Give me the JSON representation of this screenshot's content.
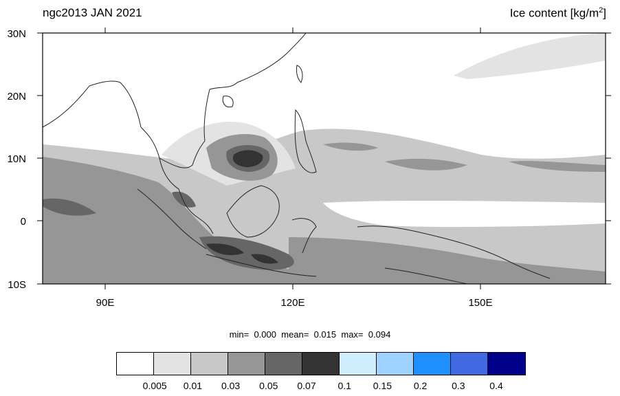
{
  "title_left": "ngc2013 JAN 2021",
  "title_right": {
    "text": "Ice content  [kg/m",
    "sup": "2",
    "close": "]"
  },
  "lat_labels": [
    "30N",
    "20N",
    "10N",
    "0",
    "10S"
  ],
  "lon_labels": [
    "90E",
    "120E",
    "150E"
  ],
  "stats": {
    "min_label": "min=",
    "min": "0.000",
    "mean_label": "mean=",
    "mean": "0.015",
    "max_label": "max=",
    "max": "0.094"
  },
  "colorbar": {
    "colors": [
      "#ffffff",
      "#e3e3e3",
      "#c8c8c8",
      "#969696",
      "#666666",
      "#333333",
      "#cfefff",
      "#a0d2ff",
      "#1e90ff",
      "#4169e1",
      "#00008b"
    ],
    "labels": [
      "0.005",
      "0.01",
      "0.03",
      "0.05",
      "0.07",
      "0.1",
      "0.15",
      "0.2",
      "0.3",
      "0.4"
    ]
  },
  "map": {
    "extent": {
      "lon": [
        80,
        170
      ],
      "lat": [
        -10,
        30
      ]
    },
    "shading_colors": {
      "light": "#e3e3e3",
      "mid": "#c8c8c8",
      "dark": "#969696",
      "darker": "#666666",
      "darkest": "#333333"
    }
  }
}
